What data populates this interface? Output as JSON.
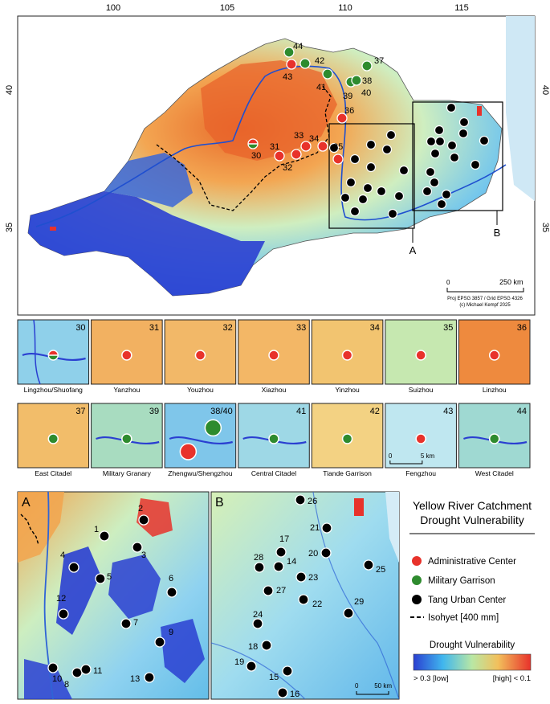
{
  "colors": {
    "admin": "#e8322b",
    "military": "#2e8b2e",
    "urban": "#000000",
    "high": "#e8322b",
    "low": "#2a3fd1"
  },
  "main_map": {
    "lon_labels": [
      "100",
      "105",
      "110",
      "115"
    ],
    "lat_labels": [
      "40",
      "35"
    ],
    "admin_points": [
      {
        "id": "30",
        "half": true
      },
      {
        "id": "31"
      },
      {
        "id": "32"
      },
      {
        "id": "33"
      },
      {
        "id": "34"
      },
      {
        "id": "35"
      },
      {
        "id": "36"
      },
      {
        "id": "43"
      }
    ],
    "military_points": [
      {
        "id": "37"
      },
      {
        "id": "38"
      },
      {
        "id": "39"
      },
      {
        "id": "40"
      },
      {
        "id": "41"
      },
      {
        "id": "42"
      },
      {
        "id": "44"
      }
    ],
    "box_labels": [
      "A",
      "B"
    ],
    "scale_labels": [
      "0",
      "250 km"
    ],
    "proj_lines": [
      "Proj EPSG 3857 / Grid EPSG 4326",
      "(c) Michael Kempf 2025"
    ]
  },
  "insets": [
    {
      "num": "30",
      "name": "Lingzhou/Shuofang",
      "type": "half"
    },
    {
      "num": "31",
      "name": "Yanzhou",
      "type": "admin"
    },
    {
      "num": "32",
      "name": "Youzhou",
      "type": "admin"
    },
    {
      "num": "33",
      "name": "Xiazhou",
      "type": "admin"
    },
    {
      "num": "34",
      "name": "Yinzhou",
      "type": "admin"
    },
    {
      "num": "35",
      "name": "Suizhou",
      "type": "admin"
    },
    {
      "num": "36",
      "name": "Linzhou",
      "type": "admin"
    },
    {
      "num": "37",
      "name": "East Citadel",
      "type": "military"
    },
    {
      "num": "39",
      "name": "Military Granary",
      "type": "military"
    },
    {
      "num": "38/40",
      "name": "Zhengwu/Shengzhou",
      "type": "double"
    },
    {
      "num": "41",
      "name": "Central Citadel",
      "type": "military"
    },
    {
      "num": "42",
      "name": "Tiande Garrison",
      "type": "military"
    },
    {
      "num": "43",
      "name": "Fengzhou",
      "type": "admin"
    },
    {
      "num": "44",
      "name": "West Citadel",
      "type": "military"
    }
  ],
  "inset_scale": [
    "0",
    "5 km"
  ],
  "panel_a": {
    "label": "A",
    "points": [
      "1",
      "2",
      "3",
      "4",
      "5",
      "6",
      "7",
      "8",
      "9",
      "10",
      "11",
      "12",
      "13"
    ]
  },
  "panel_b": {
    "label": "B",
    "points": [
      "14",
      "15",
      "16",
      "17",
      "18",
      "19",
      "20",
      "21",
      "22",
      "23",
      "24",
      "25",
      "26",
      "27",
      "28",
      "29"
    ],
    "scale": [
      "0",
      "50 km"
    ]
  },
  "legend": {
    "title_line1": "Yellow River Catchment",
    "title_line2": "Drought Vulnerability",
    "items": [
      {
        "label": "Administrative Center"
      },
      {
        "label": "Military Garrison"
      },
      {
        "label": "Tang Urban Center"
      },
      {
        "label": "Isohyet [400 mm]"
      }
    ],
    "ramp_title": "Drought Vulnerability",
    "ramp_low": "> 0.3 [low]",
    "ramp_high": "[high] < 0.1"
  }
}
